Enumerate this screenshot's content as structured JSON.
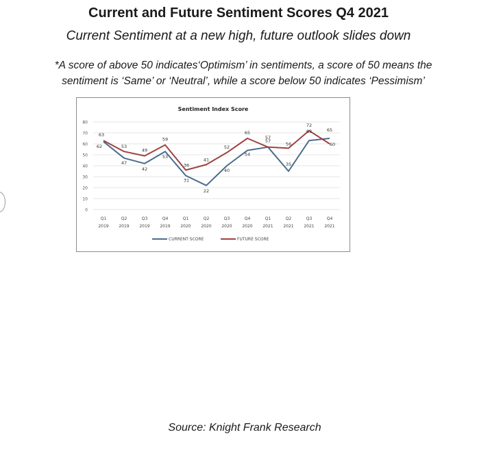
{
  "header": {
    "title": "Current and Future Sentiment Scores Q4 2021",
    "subtitle": "Current Sentiment at a new high, future outlook slides down",
    "note_line1": "*A score of above 50 indicates‘Optimism’ in sentiments, a score of 50 means the",
    "note_line2": "sentiment is ‘Same’ or ‘Neutral’, while a score below 50 indicates ‘Pessimism’"
  },
  "source": "Source: Knight Frank Research",
  "chart_data": {
    "type": "line",
    "title": "Sentiment Index Score",
    "xlabel": "",
    "ylabel": "",
    "ylim": [
      0,
      80
    ],
    "yticks": [
      0,
      10,
      20,
      30,
      40,
      50,
      60,
      70,
      80
    ],
    "grid": true,
    "legend_position": "bottom",
    "categories": [
      [
        "Q1",
        "2019"
      ],
      [
        "Q2",
        "2019"
      ],
      [
        "Q3",
        "2019"
      ],
      [
        "Q4",
        "2019"
      ],
      [
        "Q1",
        "2020"
      ],
      [
        "Q2",
        "2020"
      ],
      [
        "Q3",
        "2020"
      ],
      [
        "Q4",
        "2020"
      ],
      [
        "Q1",
        "2021"
      ],
      [
        "Q2",
        "2021"
      ],
      [
        "Q3",
        "2021"
      ],
      [
        "Q4",
        "2021"
      ]
    ],
    "series": [
      {
        "name": "CURRENT SCORE",
        "color": "#4a6b8c",
        "values": [
          62,
          47,
          42,
          53,
          31,
          22,
          40,
          54,
          57,
          35,
          63,
          65
        ],
        "label_texts": [
          "62",
          "47",
          "42",
          "53",
          "31",
          "22",
          "40",
          "54",
          "57",
          "35",
          "63",
          "65"
        ]
      },
      {
        "name": "FUTURE SCORE",
        "color": "#a04040",
        "values": [
          63,
          53,
          49,
          59,
          36,
          41,
          52,
          65,
          57,
          56,
          72,
          60
        ],
        "label_texts": [
          "63",
          "53",
          "49",
          "59",
          "36",
          "41",
          "52",
          "65",
          "57",
          "56",
          "72",
          "60"
        ]
      }
    ]
  }
}
